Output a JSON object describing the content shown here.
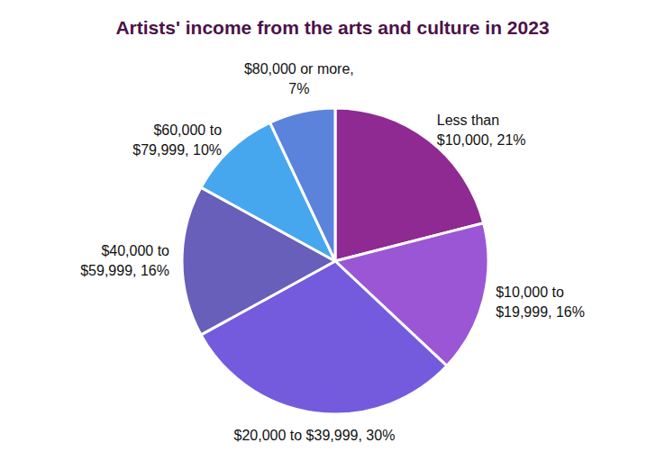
{
  "chart_data": {
    "type": "pie",
    "title": "Artists' income from the arts and culture in 2023",
    "categories": [
      "Less than $10,000",
      "$10,000 to $19,999",
      "$20,000 to $39,999",
      "$40,000 to $59,999",
      "$60,000 to $79,999",
      "$80,000 or more"
    ],
    "values": [
      21,
      16,
      30,
      16,
      10,
      7
    ],
    "value_labels": [
      "21%",
      "16%",
      "30%",
      "16%",
      "10%",
      "7%"
    ],
    "colors": [
      "#8e2a91",
      "#9b56d6",
      "#745bdd",
      "#675fba",
      "#47a7ee",
      "#5b83dc"
    ],
    "data_labels": true
  }
}
